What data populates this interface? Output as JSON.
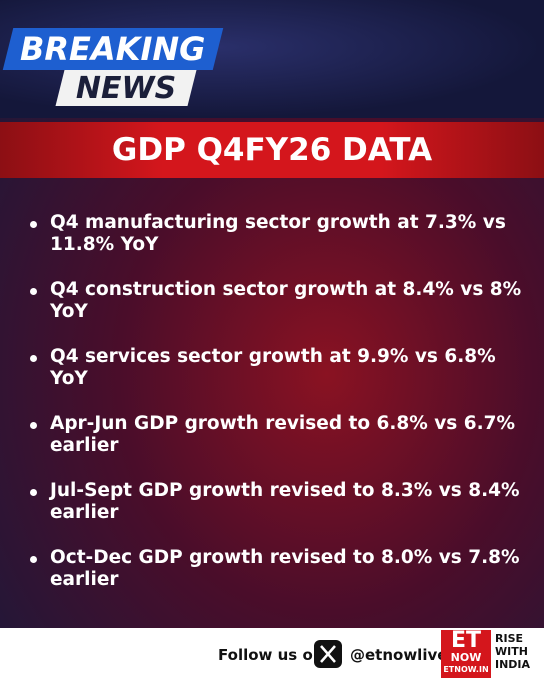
{
  "header": {
    "breaking": "BREAKING",
    "news": "NEWS"
  },
  "banner": {
    "title": "GDP Q4FY26 DATA"
  },
  "bullets": [
    "Q4 manufacturing sector growth at 7.3% vs 11.8% YoY",
    "Q4 construction sector growth at 8.4% vs 8% YoY",
    "Q4 services sector growth at 9.9% vs 6.8% YoY",
    "Apr-Jun GDP growth revised to 6.8% vs 6.7% earlier",
    "Jul-Sept GDP growth revised to 8.3% vs 8.4% earlier",
    "Oct-Dec GDP growth revised to 8.0% vs 7.8% earlier"
  ],
  "footer": {
    "follow": "Follow us on",
    "handle": "@etnowlive",
    "logo": {
      "et": "ET",
      "now": "NOW",
      "site": "ETNOW.IN",
      "tagline": [
        "RISE",
        "WITH",
        "INDIA"
      ]
    }
  }
}
